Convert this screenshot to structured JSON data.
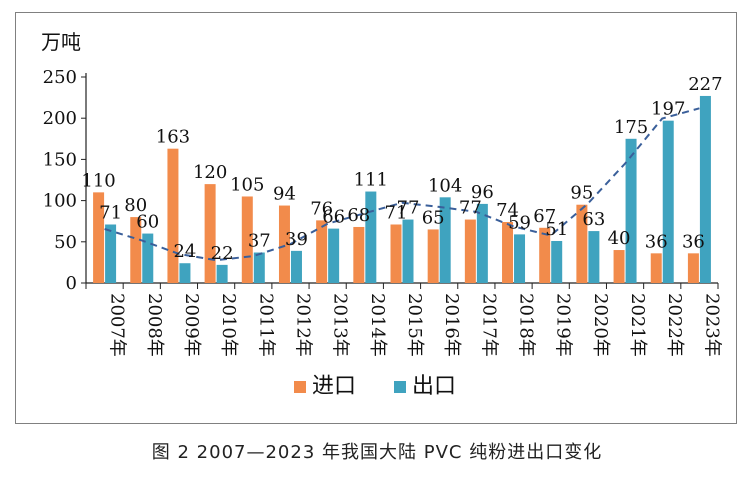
{
  "chart_data": {
    "type": "bar",
    "unit_label": "万吨",
    "categories": [
      "2007年",
      "2008年",
      "2009年",
      "2010年",
      "2011年",
      "2012年",
      "2013年",
      "2014年",
      "2015年",
      "2016年",
      "2017年",
      "2018年",
      "2019年",
      "2020年",
      "2021年",
      "2022年",
      "2023年"
    ],
    "series": [
      {
        "name": "进口",
        "color": "#f28b4b",
        "values": [
          110,
          80,
          163,
          120,
          105,
          94,
          76,
          68,
          71,
          65,
          77,
          74,
          67,
          95,
          40,
          36,
          36
        ]
      },
      {
        "name": "出口",
        "color": "#3fa3bf",
        "values": [
          71,
          60,
          24,
          22,
          37,
          39,
          66,
          111,
          77,
          104,
          96,
          59,
          51,
          63,
          175,
          197,
          227
        ]
      }
    ],
    "trend": {
      "type": "dashed-line",
      "of_series": "出口",
      "color": "#3a5f9a"
    },
    "yticks": [
      0,
      50,
      100,
      150,
      200,
      250
    ],
    "ylim": [
      0,
      250
    ],
    "legend_position": "bottom-center"
  },
  "caption": "图 2  2007—2023 年我国大陆 PVC 纯粉进出口变化"
}
